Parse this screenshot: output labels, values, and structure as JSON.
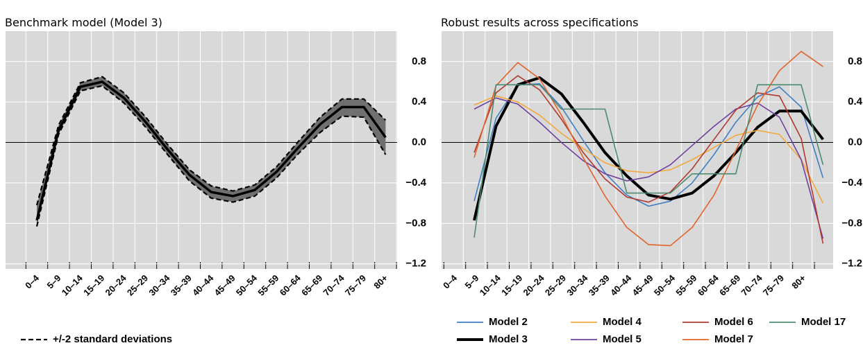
{
  "chart_data": [
    {
      "type": "band-line",
      "title": "Benchmark model (Model 3)",
      "categories": [
        "0–4",
        "5–9",
        "10–14",
        "15–19",
        "20–24",
        "25–29",
        "30–34",
        "35–39",
        "40–44",
        "45–49",
        "50–54",
        "55–59",
        "60–64",
        "65–69",
        "70–74",
        "75–79",
        "80+"
      ],
      "values": [
        -0.77,
        0.12,
        0.55,
        0.6,
        0.44,
        0.2,
        -0.07,
        -0.32,
        -0.49,
        -0.53,
        -0.47,
        -0.29,
        -0.05,
        0.18,
        0.35,
        0.35,
        0.05
      ],
      "color": "#000000",
      "band": {
        "name": "+/-2 standard deviations",
        "color": "#707070",
        "upper": [
          -0.62,
          0.17,
          0.59,
          0.65,
          0.49,
          0.25,
          -0.02,
          -0.27,
          -0.43,
          -0.48,
          -0.42,
          -0.24,
          0.01,
          0.25,
          0.43,
          0.43,
          0.22
        ],
        "lower": [
          -0.83,
          0.08,
          0.51,
          0.56,
          0.39,
          0.15,
          -0.12,
          -0.38,
          -0.55,
          -0.59,
          -0.53,
          -0.35,
          -0.11,
          0.1,
          0.26,
          0.25,
          -0.12
        ]
      },
      "ylim": [
        -1.25,
        1.1
      ],
      "yticks": [
        {
          "value": -1.2,
          "label": "−1.2"
        },
        {
          "value": -0.8,
          "label": "−0.8"
        },
        {
          "value": -0.4,
          "label": "−0.4"
        },
        {
          "value": 0,
          "label": "0.0"
        },
        0.4,
        0.8
      ],
      "grid": true
    },
    {
      "type": "line",
      "title": "Robust results across specifications",
      "categories": [
        "0–4",
        "5–9",
        "10–14",
        "15–19",
        "20–24",
        "25–29",
        "30–34",
        "35–39",
        "40–44",
        "45–49",
        "50–54",
        "55–59",
        "60–64",
        "65–69",
        "70–74",
        "75–79",
        "80+"
      ],
      "series": [
        {
          "name": "Model 2",
          "color": "#3f7dc4",
          "values": [
            -0.58,
            0.24,
            0.57,
            0.58,
            0.35,
            0.02,
            -0.3,
            -0.52,
            -0.63,
            -0.58,
            -0.4,
            -0.12,
            0.2,
            0.45,
            0.55,
            0.35,
            -0.35
          ]
        },
        {
          "name": "Model 3",
          "color": "#000000",
          "values": [
            -0.77,
            0.16,
            0.57,
            0.64,
            0.48,
            0.2,
            -0.1,
            -0.33,
            -0.52,
            -0.56,
            -0.5,
            -0.33,
            -0.1,
            0.15,
            0.31,
            0.31,
            0.03
          ]
        },
        {
          "name": "Model 4",
          "color": "#f2a93b",
          "values": [
            0.37,
            0.46,
            0.4,
            0.27,
            0.09,
            -0.06,
            -0.2,
            -0.28,
            -0.3,
            -0.27,
            -0.17,
            -0.05,
            0.07,
            0.12,
            0.08,
            -0.17,
            -0.6
          ]
        },
        {
          "name": "Model 5",
          "color": "#6f3f9e",
          "values": [
            0.33,
            0.44,
            0.38,
            0.2,
            0.0,
            -0.18,
            -0.31,
            -0.38,
            -0.34,
            -0.22,
            -0.03,
            0.16,
            0.33,
            0.39,
            0.25,
            -0.17,
            -0.95
          ]
        },
        {
          "name": "Model 6",
          "color": "#b0392e",
          "values": [
            -0.1,
            0.49,
            0.66,
            0.52,
            0.23,
            -0.1,
            -0.36,
            -0.54,
            -0.59,
            -0.49,
            -0.26,
            0.03,
            0.32,
            0.49,
            0.46,
            0.04,
            -1.0
          ]
        },
        {
          "name": "Model 7",
          "color": "#e2622a",
          "values": [
            -0.15,
            0.56,
            0.79,
            0.63,
            0.27,
            -0.15,
            -0.53,
            -0.84,
            -1.01,
            -1.02,
            -0.84,
            -0.52,
            -0.08,
            0.37,
            0.71,
            0.9,
            0.75
          ]
        },
        {
          "name": "Model 17",
          "color": "#4b8b70",
          "values": [
            -0.94,
            0.57,
            0.57,
            0.57,
            0.33,
            0.33,
            0.33,
            -0.5,
            -0.5,
            -0.5,
            -0.31,
            -0.31,
            -0.31,
            0.57,
            0.57,
            0.57,
            -0.22
          ]
        }
      ],
      "ylim": [
        -1.25,
        1.1
      ],
      "yticks": [
        {
          "value": -1.2,
          "label": "−1.2"
        },
        {
          "value": -0.8,
          "label": "−0.8"
        },
        {
          "value": -0.4,
          "label": "−0.4"
        },
        {
          "value": 0,
          "label": "0.0"
        },
        0.4,
        0.8
      ],
      "grid": true
    }
  ]
}
